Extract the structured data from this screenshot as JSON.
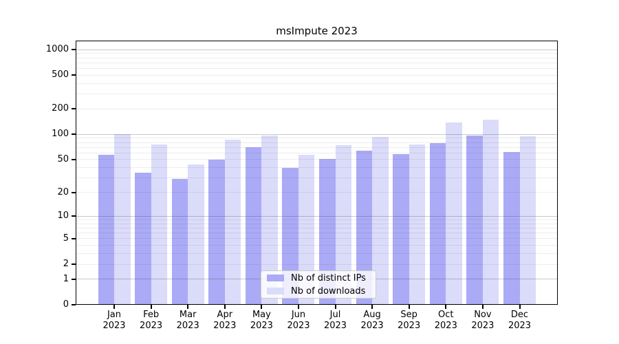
{
  "chart_data": {
    "type": "bar",
    "title": "msImpute 2023",
    "x_tick_year": "2023",
    "categories": [
      "Jan",
      "Feb",
      "Mar",
      "Apr",
      "May",
      "Jun",
      "Jul",
      "Aug",
      "Sep",
      "Oct",
      "Nov",
      "Dec"
    ],
    "series": [
      {
        "name": "Nb of distinct IPs",
        "color": "#aaaaf6",
        "values": [
          57,
          35,
          29,
          50,
          70,
          40,
          51,
          64,
          58,
          78,
          97,
          61
        ]
      },
      {
        "name": "Nb of downloads",
        "color": "#dbdbfa",
        "values": [
          100,
          76,
          44,
          86,
          97,
          57,
          74,
          93,
          75,
          138,
          150,
          95
        ]
      }
    ],
    "y_axis": {
      "scale": "log1p",
      "tick_labels": [
        "1000",
        "500",
        "200",
        "100",
        "50",
        "20",
        "10",
        "5",
        "2",
        "1",
        "0"
      ],
      "tick_values": [
        1000,
        500,
        200,
        100,
        50,
        20,
        10,
        5,
        2,
        1,
        0
      ],
      "major_gridlines": [
        1,
        10,
        100,
        1000
      ],
      "minor_gridline_decades": [
        1,
        10,
        100
      ],
      "ylim": [
        0,
        1230
      ]
    },
    "legend": {
      "position": "lower-center-inside"
    },
    "grid": true
  },
  "colors": {
    "background": "#ffffff",
    "spine": "#000000",
    "major_grid": "rgba(60,60,60,0.28)",
    "minor_grid": "rgba(60,60,60,0.09)",
    "legend_border": "#cccccc",
    "legend_background": "rgba(255,255,255,0.8)",
    "text": "#000000"
  }
}
